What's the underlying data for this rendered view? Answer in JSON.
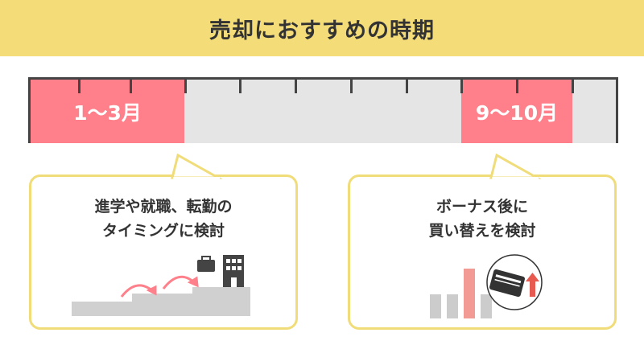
{
  "header": {
    "title": "売却におすすめの時期"
  },
  "timeline": {
    "highlights": [
      {
        "label": "1〜3月"
      },
      {
        "label": "9〜10月"
      }
    ],
    "colors": {
      "highlight": "#ff7f8a",
      "base": "#e5e5e5",
      "accent": "#f4dc78"
    }
  },
  "cards": [
    {
      "line1": "進学や就職、転勤の",
      "line2": "タイミングに検討",
      "icons": [
        "stairs-icon",
        "arrow-icon",
        "briefcase-icon",
        "building-icon"
      ]
    },
    {
      "line1": "ボーナス後に",
      "line2": "買い替えを検討",
      "icons": [
        "bar-chart-icon",
        "credit-card-icon",
        "up-arrow-icon"
      ]
    }
  ]
}
